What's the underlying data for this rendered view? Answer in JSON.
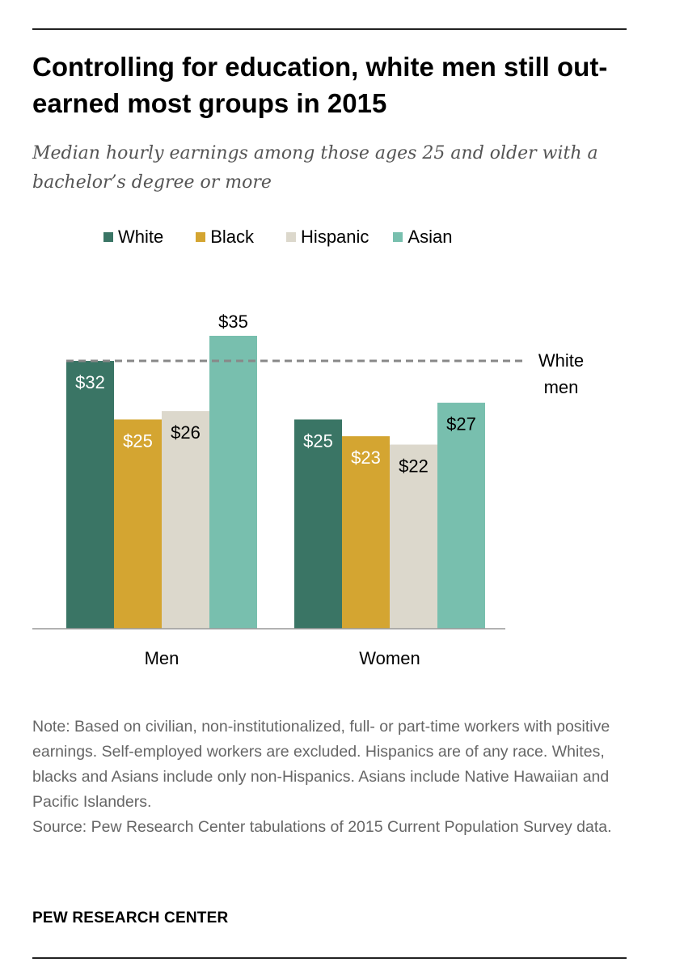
{
  "title": "Controlling for education, white men still out-earned  most groups in 2015",
  "subtitle": "Median hourly earnings among those ages 25 and older with a bachelor’s degree or more",
  "legend": [
    {
      "label": "White",
      "color": "#3a7565"
    },
    {
      "label": "Black",
      "color": "#d4a531"
    },
    {
      "label": "Hispanic",
      "color": "#dcd8cc"
    },
    {
      "label": "Asian",
      "color": "#78bfae"
    }
  ],
  "chart_data": {
    "type": "bar",
    "title": "Controlling for education, white men still out-earned  most groups in 2015",
    "categories": [
      "Men",
      "Women"
    ],
    "series": [
      {
        "name": "White",
        "values": [
          32,
          25
        ],
        "labels": [
          "$32",
          "$25"
        ],
        "color": "#3a7565",
        "label_color": "#ffffff"
      },
      {
        "name": "Black",
        "values": [
          25,
          23
        ],
        "labels": [
          "$25",
          "$23"
        ],
        "color": "#d4a531",
        "label_color": "#ffffff"
      },
      {
        "name": "Hispanic",
        "values": [
          26,
          22
        ],
        "labels": [
          "$26",
          "$22"
        ],
        "color": "#dcd8cc",
        "label_color": "#000000"
      },
      {
        "name": "Asian",
        "values": [
          35,
          27
        ],
        "labels": [
          "$35",
          "$27"
        ],
        "color": "#78bfae",
        "label_color": "#000000"
      }
    ],
    "reference_line": {
      "value": 32,
      "label_line1": "White",
      "label_line2": "men",
      "style": "dashed",
      "color": "#888888"
    },
    "ylim": [
      0,
      35
    ],
    "xlabel": "",
    "ylabel": "",
    "grid": false
  },
  "note": "Note: Based on civilian, non-institutionalized, full- or part-time workers with positive earnings. Self-employed workers are excluded. Hispanics are of any race. Whites, blacks and Asians include only non-Hispanics. Asians include Native Hawaiian and Pacific Islanders.",
  "source": "Source: Pew Research Center tabulations of 2015 Current Population Survey data.",
  "footer": "PEW RESEARCH CENTER"
}
